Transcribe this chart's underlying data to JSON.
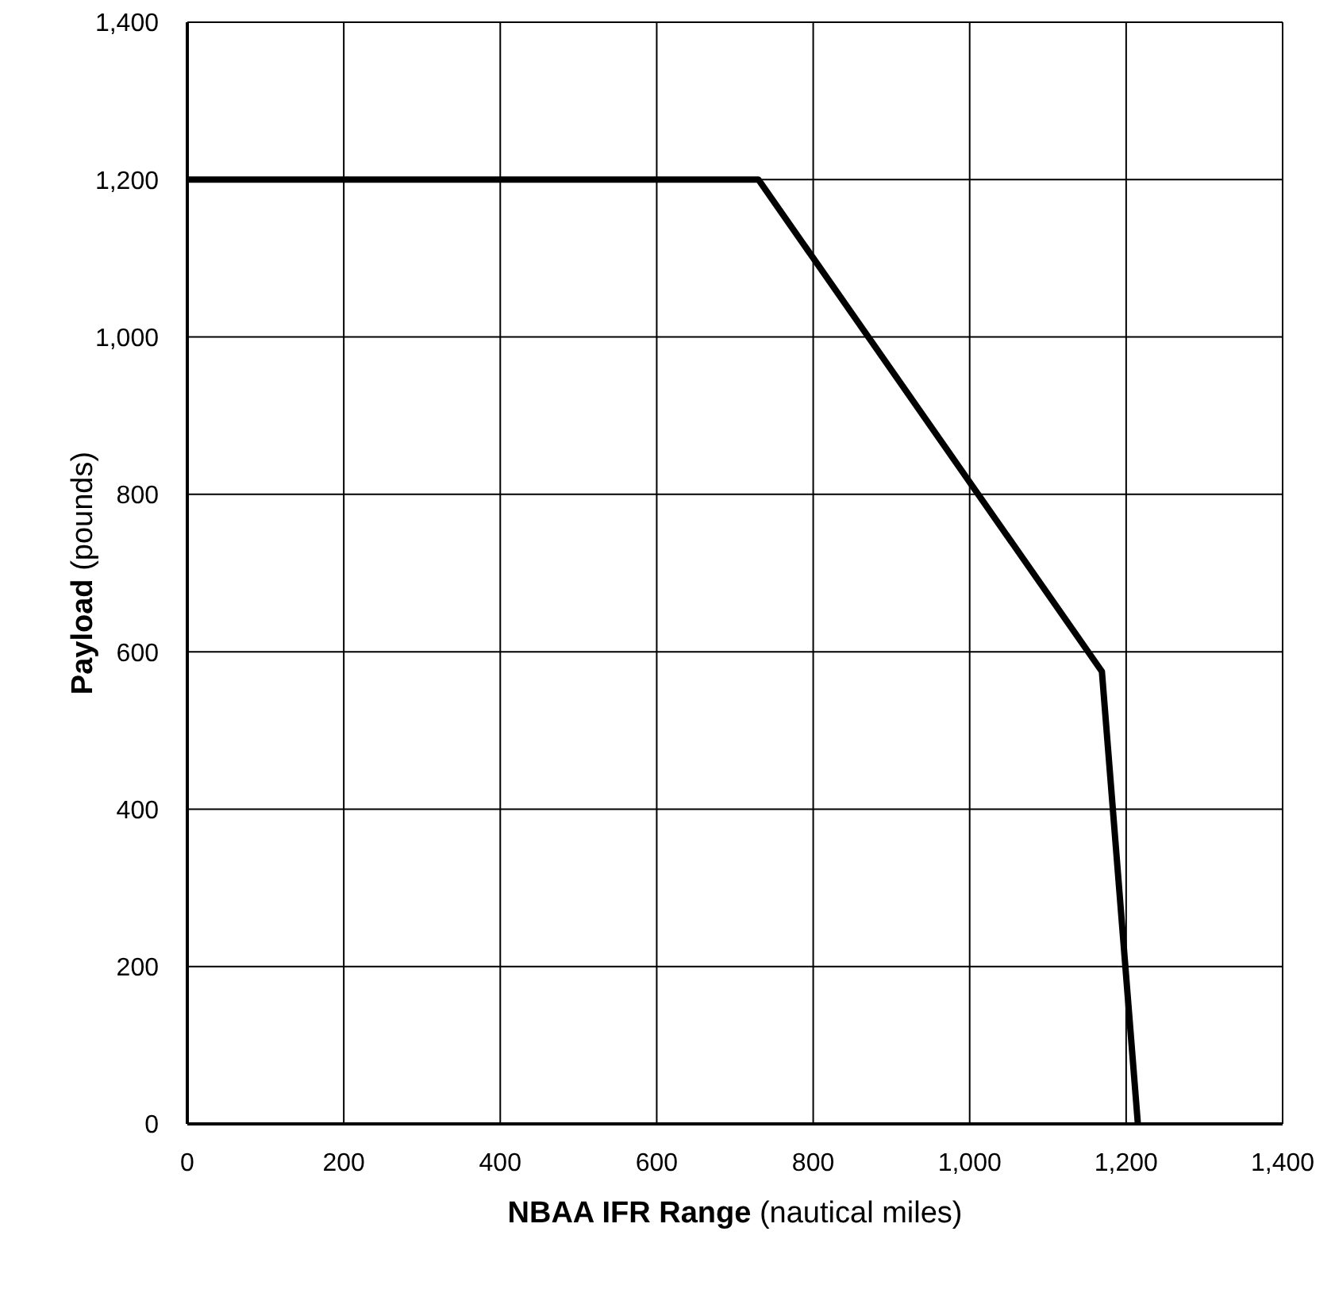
{
  "chart_data": {
    "type": "line",
    "xlabel": "NBAA IFR Range (nautical miles)",
    "ylabel": "Payload (pounds)",
    "x": [
      0,
      730,
      1169,
      1215
    ],
    "series": [
      {
        "color": "#000000",
        "values": [
          1200,
          1200,
          575,
          0
        ]
      }
    ],
    "xlim": [
      0,
      1400
    ],
    "xticks": [
      0,
      200,
      400,
      600,
      800,
      {
        "value": 1000,
        "label": "1,000"
      },
      {
        "value": 1200,
        "label": "1,200"
      },
      {
        "value": 1400,
        "label": "1,400"
      }
    ],
    "ylim": [
      0,
      1400
    ],
    "yticks": [
      0,
      200,
      400,
      600,
      800,
      {
        "value": 1000,
        "label": "1,000"
      },
      {
        "value": 1200,
        "label": "1,200"
      },
      {
        "value": 1400,
        "label": "1,400"
      }
    ],
    "grid": true,
    "marker": "none",
    "line_style": "solid",
    "legend": false
  }
}
